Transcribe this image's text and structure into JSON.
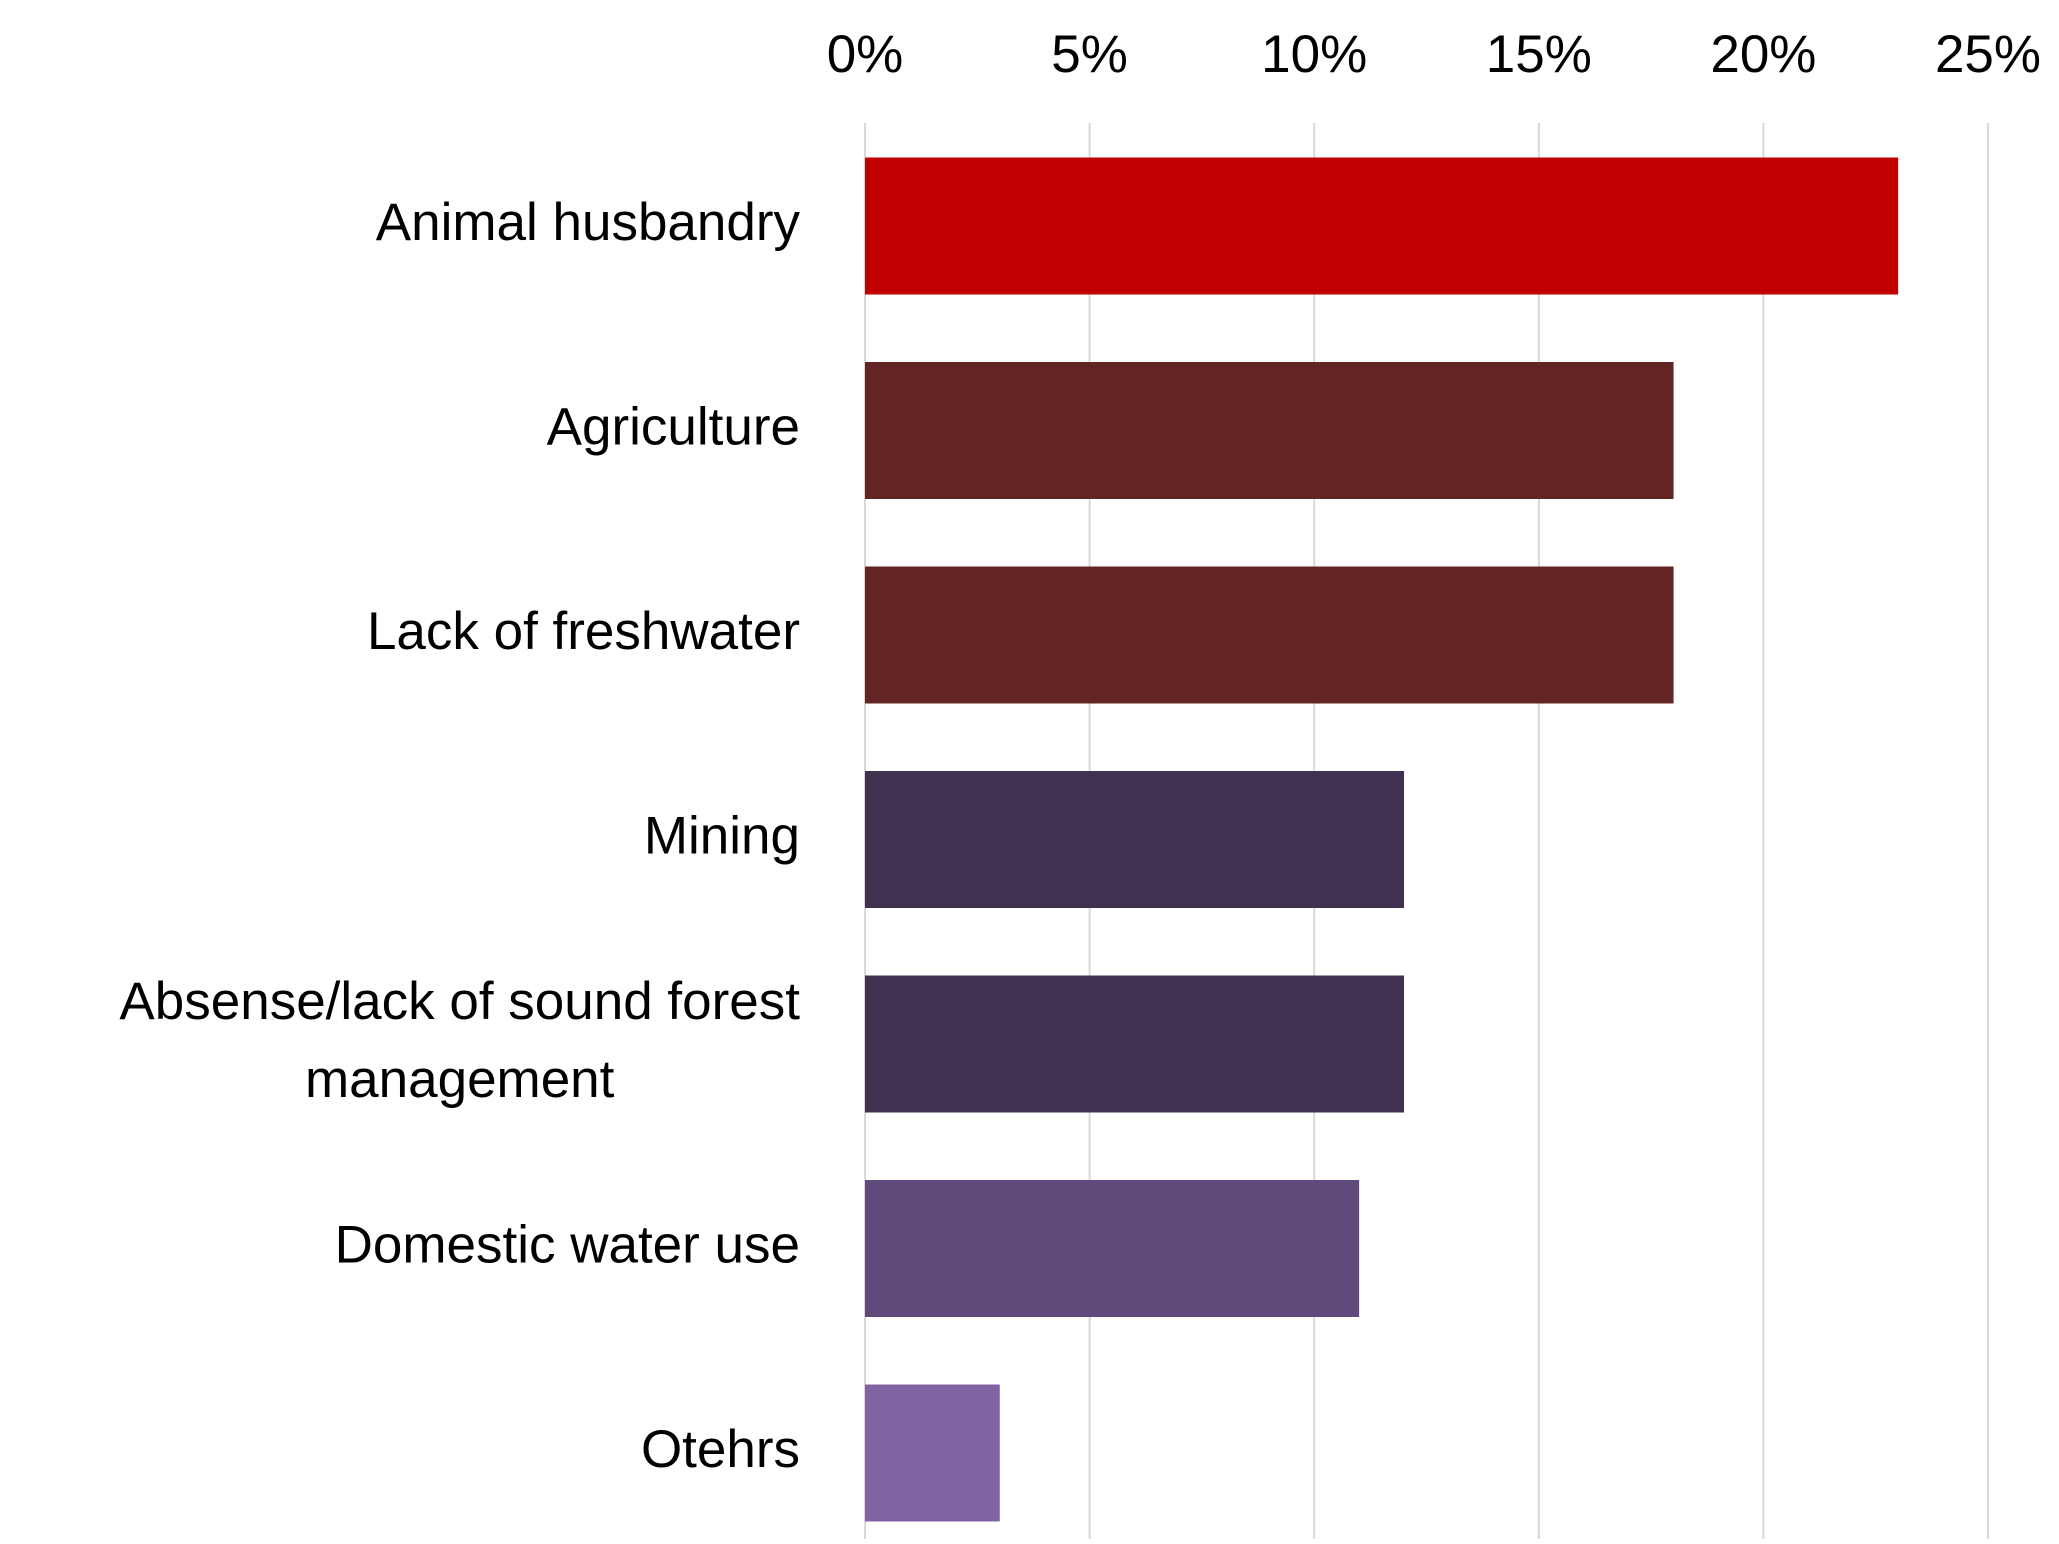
{
  "chart_data": {
    "type": "bar",
    "orientation": "horizontal",
    "title": "",
    "xlabel": "",
    "ylabel": "",
    "xlim": [
      0,
      25
    ],
    "x_ticks": [
      "0%",
      "5%",
      "10%",
      "15%",
      "20%",
      "25%"
    ],
    "x_tick_values": [
      0,
      5,
      10,
      15,
      20,
      25
    ],
    "x_axis_position": "top",
    "grid": "vertical",
    "legend": "none",
    "categories": [
      "Animal husbandry",
      "Agriculture",
      "Lack of freshwater",
      "Mining",
      "Absense/lack of sound forest management",
      "Domestic water use",
      "Otehrs"
    ],
    "category_label_lines": [
      [
        "Animal husbandry"
      ],
      [
        "Agriculture"
      ],
      [
        "Lack of freshwater"
      ],
      [
        "Mining"
      ],
      [
        "Absense/lack of sound forest",
        "management"
      ],
      [
        "Domestic water use"
      ],
      [
        "Otehrs"
      ]
    ],
    "values": [
      23,
      18,
      18,
      12,
      12,
      11,
      3
    ],
    "bar_colors": [
      "#C00000",
      "#632523",
      "#632523",
      "#403151",
      "#403151",
      "#604A7B",
      "#8064A2"
    ],
    "grid_color": "#D9D9D9"
  }
}
